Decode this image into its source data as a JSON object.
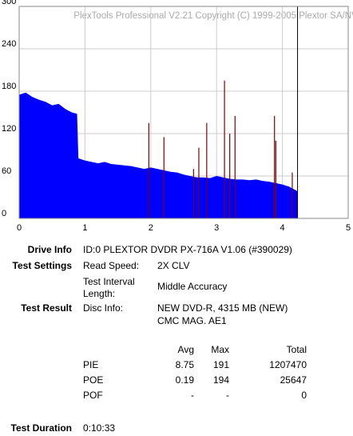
{
  "chart_data": {
    "type": "area",
    "title": "PlexTools Professional V2.21 Copyright (C) 1999-2005 Plextor SA/NV",
    "xlim": [
      0,
      5
    ],
    "xticks": [
      0,
      1,
      2,
      3,
      4,
      5
    ],
    "ylim": [
      0,
      300
    ],
    "yticks": [
      0,
      60,
      120,
      180,
      240,
      300
    ],
    "grid": true,
    "series": [
      {
        "color": "#0000ff",
        "x": [
          0,
          0.1,
          0.2,
          0.3,
          0.4,
          0.5,
          0.6,
          0.7,
          0.8,
          0.88,
          0.9,
          1.0,
          1.1,
          1.2,
          1.3,
          1.4,
          1.5,
          1.6,
          1.7,
          1.8,
          1.9,
          2.0,
          2.1,
          2.2,
          2.3,
          2.4,
          2.5,
          2.6,
          2.7,
          2.8,
          2.9,
          3.0,
          3.1,
          3.2,
          3.3,
          3.4,
          3.5,
          3.6,
          3.7,
          3.8,
          3.9,
          4.0,
          4.1,
          4.2,
          4.23
        ],
        "values": [
          175,
          178,
          172,
          168,
          165,
          160,
          162,
          155,
          150,
          148,
          85,
          82,
          80,
          78,
          80,
          77,
          76,
          75,
          74,
          72,
          70,
          72,
          70,
          68,
          66,
          65,
          62,
          60,
          58,
          58,
          57,
          60,
          58,
          56,
          55,
          55,
          54,
          55,
          53,
          52,
          50,
          48,
          45,
          40,
          38
        ]
      },
      {
        "color": "#800000",
        "style": "spikes",
        "x": [
          1.97,
          2.2,
          2.65,
          2.73,
          2.85,
          3.12,
          3.2,
          3.28,
          3.88,
          3.9,
          4.15
        ],
        "values": [
          135,
          115,
          70,
          100,
          135,
          195,
          120,
          145,
          145,
          110,
          65
        ]
      }
    ],
    "marker_x": 4.23
  },
  "info": [
    {
      "label": "Drive Info",
      "lines": [
        [
          "ID:0 PLEXTOR DVDR PX-716A V1.06 (#390029)"
        ]
      ]
    },
    {
      "label": "Test Settings",
      "lines": [
        [
          "Read Speed:",
          "2X CLV"
        ],
        [
          "Test Interval Length:",
          "Middle Accuracy"
        ]
      ]
    },
    {
      "label": "Test Result",
      "lines": [
        [
          "Disc Info:",
          "NEW DVD-R, 4315 MB (NEW)"
        ],
        [
          "",
          "CMC MAG. AE1"
        ]
      ]
    }
  ],
  "results": {
    "header": [
      "Avg",
      "Max",
      "Total"
    ],
    "rows": [
      [
        "PIE",
        8.75,
        191,
        1207470
      ],
      [
        "POE",
        0.19,
        194,
        25647
      ],
      [
        "POF",
        "-",
        "-",
        0
      ]
    ]
  },
  "duration": {
    "label": "Test Duration",
    "value": "0:10:33"
  }
}
